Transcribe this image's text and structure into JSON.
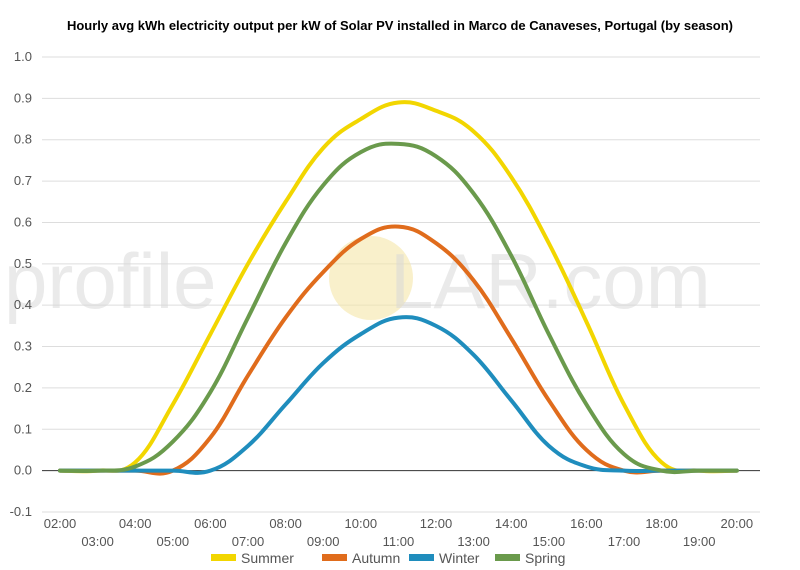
{
  "chart_data": {
    "type": "line",
    "title": "Hourly avg kWh electricity output per kW of Solar PV installed in Marco de Canaveses, Portugal (by season)",
    "xlabel": "",
    "ylabel": "",
    "ylim": [
      -0.1,
      1.0
    ],
    "yticks": [
      "-0.1",
      "0.0",
      "0.1",
      "0.2",
      "0.3",
      "0.4",
      "0.5",
      "0.6",
      "0.7",
      "0.8",
      "0.9",
      "1.0"
    ],
    "categories": [
      "02:00",
      "03:00",
      "04:00",
      "05:00",
      "06:00",
      "07:00",
      "08:00",
      "09:00",
      "10:00",
      "11:00",
      "12:00",
      "13:00",
      "14:00",
      "15:00",
      "16:00",
      "17:00",
      "18:00",
      "19:00",
      "20:00"
    ],
    "series": [
      {
        "name": "Summer",
        "color": "#f2d600",
        "values": [
          0.0,
          0.0,
          0.02,
          0.16,
          0.33,
          0.5,
          0.65,
          0.78,
          0.85,
          0.89,
          0.87,
          0.82,
          0.71,
          0.55,
          0.36,
          0.16,
          0.02,
          0.0,
          0.0
        ]
      },
      {
        "name": "Autumn",
        "color": "#e06c1c",
        "values": [
          0.0,
          0.0,
          0.0,
          0.0,
          0.08,
          0.23,
          0.37,
          0.48,
          0.56,
          0.59,
          0.55,
          0.46,
          0.32,
          0.17,
          0.05,
          0.0,
          0.0,
          0.0,
          0.0
        ]
      },
      {
        "name": "Winter",
        "color": "#1f8dbd",
        "values": [
          0.0,
          0.0,
          0.0,
          0.0,
          0.0,
          0.06,
          0.16,
          0.26,
          0.33,
          0.37,
          0.35,
          0.28,
          0.17,
          0.06,
          0.01,
          0.0,
          0.0,
          0.0,
          0.0
        ]
      },
      {
        "name": "Spring",
        "color": "#6a9a4c",
        "values": [
          0.0,
          0.0,
          0.01,
          0.07,
          0.19,
          0.37,
          0.55,
          0.69,
          0.77,
          0.79,
          0.76,
          0.67,
          0.52,
          0.33,
          0.16,
          0.04,
          0.0,
          0.0,
          0.0
        ]
      }
    ],
    "grid": true,
    "legend_position": "bottom"
  },
  "watermark": {
    "text_left": "profile",
    "text_right": "LAR.com",
    "sun_color": "#f5e6a8"
  }
}
